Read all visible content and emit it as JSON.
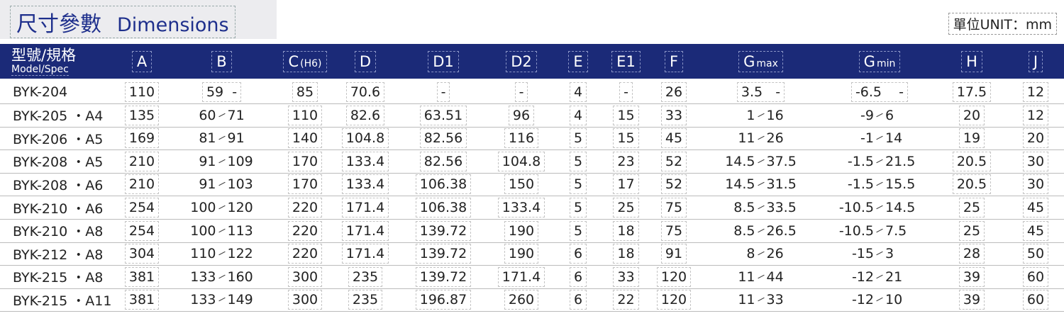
{
  "header": {
    "title": "尺寸參數",
    "title_en": "Dimensions",
    "unit": "單位UNIT：mm"
  },
  "table": {
    "columns": [
      {
        "main": "型號/規格",
        "sub": "Model/Spec"
      },
      {
        "main": "A"
      },
      {
        "main": "B"
      },
      {
        "main": "C",
        "sub": "(H6)"
      },
      {
        "main": "D"
      },
      {
        "main": "D1"
      },
      {
        "main": "D2"
      },
      {
        "main": "E"
      },
      {
        "main": "E1"
      },
      {
        "main": "F"
      },
      {
        "main": "G",
        "sub": "max"
      },
      {
        "main": "G",
        "sub": "min"
      },
      {
        "main": "H"
      },
      {
        "main": "J"
      }
    ],
    "rows": [
      [
        "BYK-204",
        "110",
        "59  -",
        "85",
        "70.6",
        "-",
        "-",
        "4",
        "-",
        "26",
        "3.5   -",
        "-6.5    -",
        "17.5",
        "12"
      ],
      [
        "BYK-205 ・A4",
        "135",
        [
          "60",
          "71"
        ],
        "110",
        "82.6",
        "63.51",
        "96",
        "4",
        "15",
        "33",
        [
          "1",
          "16"
        ],
        [
          "-9",
          "6"
        ],
        "20",
        "12"
      ],
      [
        "BYK-206 ・A5",
        "169",
        [
          "81",
          "91"
        ],
        "140",
        "104.8",
        "82.56",
        "116",
        "5",
        "15",
        "45",
        [
          "11",
          "26"
        ],
        [
          "-1",
          "14"
        ],
        "19",
        "20"
      ],
      [
        "BYK-208 ・A5",
        "210",
        [
          "91",
          "109"
        ],
        "170",
        "133.4",
        "82.56",
        "104.8",
        "5",
        "23",
        "52",
        [
          "14.5",
          "37.5"
        ],
        [
          "-1.5",
          "21.5"
        ],
        "20.5",
        "30"
      ],
      [
        "BYK-208 ・A6",
        "210",
        [
          "91",
          "103"
        ],
        "170",
        "133.4",
        "106.38",
        "150",
        "5",
        "17",
        "52",
        [
          "14.5",
          "31.5"
        ],
        [
          "-1.5",
          "15.5"
        ],
        "20.5",
        "30"
      ],
      [
        "BYK-210 ・A6",
        "254",
        [
          "100",
          "120"
        ],
        "220",
        "171.4",
        "106.38",
        "133.4",
        "5",
        "25",
        "75",
        [
          "8.5",
          "33.5"
        ],
        [
          "-10.5",
          "14.5"
        ],
        "25",
        "45"
      ],
      [
        "BYK-210 ・A8",
        "254",
        [
          "100",
          "113"
        ],
        "220",
        "171.4",
        "139.72",
        "190",
        "5",
        "18",
        "75",
        [
          "8.5",
          "26.5"
        ],
        [
          "-10.5",
          "7.5"
        ],
        "25",
        "45"
      ],
      [
        "BYK-212 ・A8",
        "304",
        [
          "110",
          "122"
        ],
        "220",
        "171.4",
        "139.72",
        "190",
        "6",
        "18",
        "91",
        [
          "8",
          "26"
        ],
        [
          "-15",
          "3"
        ],
        "28",
        "50"
      ],
      [
        "BYK-215 ・A8",
        "381",
        [
          "133",
          "160"
        ],
        "300",
        "235",
        "139.72",
        "171.4",
        "6",
        "33",
        "120",
        [
          "11",
          "44"
        ],
        [
          "-12",
          "21"
        ],
        "39",
        "60"
      ],
      [
        "BYK-215 ・A11",
        "381",
        [
          "133",
          "149"
        ],
        "300",
        "235",
        "196.87",
        "260",
        "6",
        "22",
        "120",
        [
          "11",
          "33"
        ],
        [
          "-12",
          "10"
        ],
        "39",
        "60"
      ]
    ]
  }
}
